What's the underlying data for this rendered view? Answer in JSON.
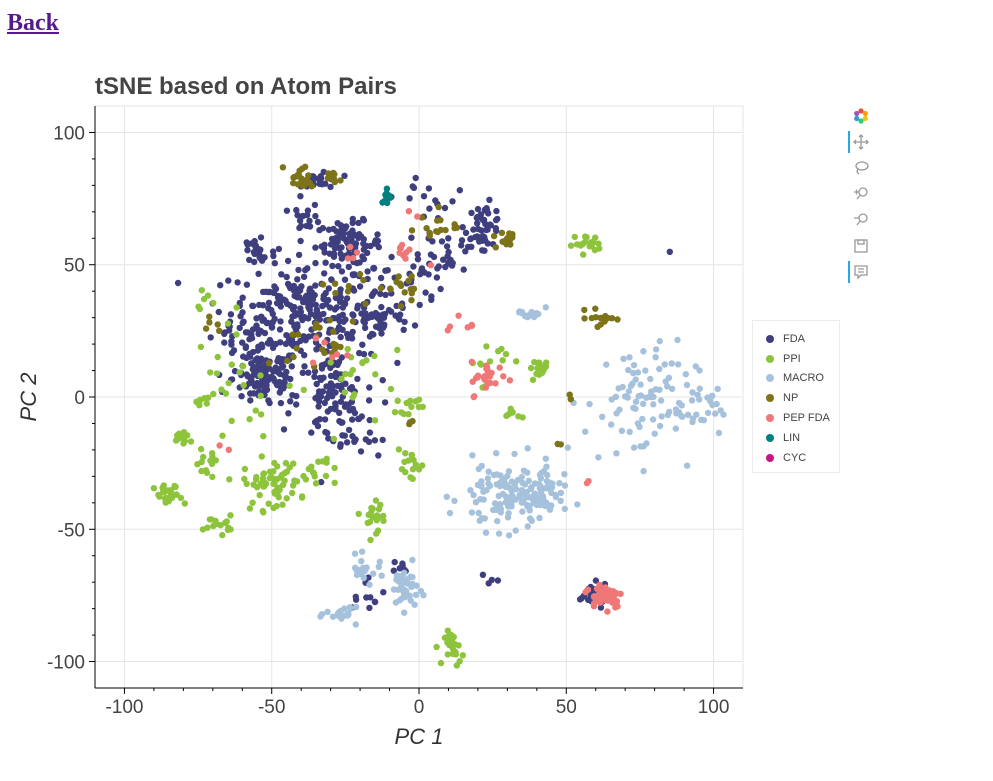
{
  "nav": {
    "back_label": "Back"
  },
  "toolbar": {
    "tools": [
      {
        "name": "bokeh-logo-icon"
      },
      {
        "name": "pan-icon"
      },
      {
        "name": "lasso-select-icon"
      },
      {
        "name": "zoom-in-icon"
      },
      {
        "name": "zoom-out-icon"
      },
      {
        "name": "save-icon"
      },
      {
        "name": "hover-icon"
      }
    ]
  },
  "chart_data": {
    "type": "scatter",
    "title": "tSNE based on Atom Pairs",
    "xlabel": "PC 1",
    "ylabel": "PC 2",
    "xlim": [
      -110,
      110
    ],
    "ylim": [
      -110,
      110
    ],
    "xticks": [
      -100,
      -50,
      0,
      50,
      100
    ],
    "yticks": [
      100,
      50,
      0,
      -50,
      -100
    ],
    "grid": true,
    "legend_position": "right",
    "series": [
      {
        "name": "FDA",
        "color": "#3f3f7f",
        "clusters": [
          [
            -40,
            32,
            15,
            12,
            240
          ],
          [
            -24,
            58,
            7,
            5,
            90
          ],
          [
            -52,
            7,
            7,
            7,
            110
          ],
          [
            -33,
            82,
            4,
            3,
            20
          ],
          [
            -38,
            68,
            3,
            3,
            15
          ],
          [
            22,
            65,
            4,
            5,
            45
          ],
          [
            -30,
            0,
            7,
            10,
            90
          ],
          [
            -55,
            55,
            4,
            5,
            25
          ],
          [
            -15,
            30,
            8,
            6,
            55
          ],
          [
            10,
            55,
            6,
            6,
            30
          ],
          [
            -18,
            -72,
            4,
            5,
            12
          ],
          [
            -8,
            -65,
            3,
            3,
            8
          ],
          [
            58,
            -75,
            4,
            3,
            25
          ],
          [
            23,
            -70,
            2,
            2,
            4
          ],
          [
            85,
            55,
            1,
            1,
            1
          ],
          [
            -62,
            20,
            6,
            10,
            30
          ],
          [
            -5,
            45,
            8,
            8,
            30
          ],
          [
            -25,
            -15,
            12,
            8,
            25
          ],
          [
            5,
            75,
            8,
            6,
            15
          ]
        ]
      },
      {
        "name": "PPI",
        "color": "#8dc43c",
        "clusters": [
          [
            -85,
            -38,
            3,
            3,
            25
          ],
          [
            -80,
            -15,
            3,
            2,
            15
          ],
          [
            -68,
            -48,
            3,
            2,
            15
          ],
          [
            -50,
            -33,
            6,
            6,
            60
          ],
          [
            -15,
            -44,
            4,
            4,
            20
          ],
          [
            -3,
            -27,
            3,
            4,
            15
          ],
          [
            57,
            58,
            3,
            2,
            20
          ],
          [
            42,
            11,
            3,
            2,
            18
          ],
          [
            12,
            -95,
            2,
            4,
            25
          ],
          [
            31,
            -6,
            2,
            2,
            8
          ],
          [
            -3,
            -3,
            3,
            2,
            12
          ],
          [
            -73,
            -25,
            3,
            3,
            12
          ],
          [
            -60,
            5,
            10,
            15,
            25
          ],
          [
            -20,
            5,
            10,
            12,
            20
          ],
          [
            22,
            15,
            5,
            6,
            12
          ],
          [
            -35,
            -28,
            4,
            4,
            15
          ],
          [
            -74,
            -2,
            2,
            2,
            8
          ],
          [
            -72,
            35,
            2,
            3,
            6
          ]
        ]
      },
      {
        "name": "MACRO",
        "color": "#a6c1dc",
        "clusters": [
          [
            -5,
            -72,
            3,
            5,
            40
          ],
          [
            -18,
            -65,
            4,
            3,
            20
          ],
          [
            -25,
            -82,
            4,
            2,
            20
          ],
          [
            30,
            -38,
            10,
            8,
            120
          ],
          [
            42,
            -35,
            5,
            5,
            40
          ],
          [
            38,
            32,
            3,
            2,
            15
          ],
          [
            75,
            -2,
            12,
            14,
            90
          ],
          [
            95,
            -5,
            4,
            5,
            20
          ]
        ]
      },
      {
        "name": "NP",
        "color": "#7d7318",
        "clusters": [
          [
            -40,
            83,
            3,
            3,
            20
          ],
          [
            -30,
            82,
            2,
            2,
            10
          ],
          [
            30,
            60,
            3,
            3,
            15
          ],
          [
            62,
            30,
            3,
            2,
            15
          ],
          [
            -70,
            28,
            2,
            2,
            5
          ],
          [
            -35,
            20,
            6,
            6,
            20
          ],
          [
            -5,
            42,
            4,
            4,
            15
          ],
          [
            5,
            65,
            5,
            4,
            15
          ],
          [
            -20,
            40,
            6,
            6,
            10
          ],
          [
            -2,
            -10,
            1,
            1,
            3
          ],
          [
            48,
            -18,
            1,
            1,
            2
          ],
          [
            52,
            0,
            1,
            1,
            2
          ]
        ]
      },
      {
        "name": "PEP FDA",
        "color": "#f07777",
        "clusters": [
          [
            63,
            -75,
            4,
            3,
            60
          ],
          [
            24,
            7,
            4,
            4,
            25
          ],
          [
            -5,
            55,
            4,
            3,
            8
          ],
          [
            15,
            25,
            4,
            4,
            6
          ],
          [
            -30,
            18,
            4,
            4,
            6
          ],
          [
            -65,
            -20,
            1,
            1,
            2
          ],
          [
            -2,
            70,
            2,
            2,
            2
          ],
          [
            -22,
            55,
            2,
            2,
            4
          ],
          [
            57,
            -32,
            1,
            1,
            2
          ]
        ]
      },
      {
        "name": "LIN",
        "color": "#008080",
        "clusters": [
          [
            -11,
            76,
            1,
            2,
            10
          ]
        ]
      },
      {
        "name": "CYC",
        "color": "#c71585",
        "clusters": []
      }
    ]
  }
}
